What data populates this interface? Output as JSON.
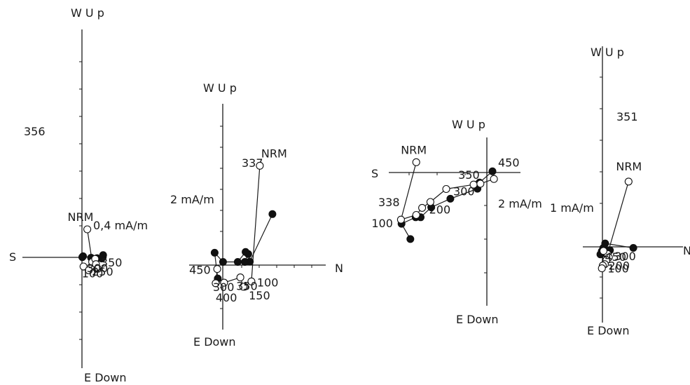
{
  "colors": {
    "ink": "#1a1a1a",
    "filled_point": "#111111",
    "open_point": "#ffffff"
  },
  "chart_data": [
    {
      "type": "scatter",
      "panel_label": "356",
      "axis_labels": {
        "north": "",
        "south": "S",
        "up": "W U p",
        "down": "E Down"
      },
      "scale_label": "0,4 mA/m",
      "scale_value": 0.4,
      "unit": "mA/m",
      "series": [
        {
          "name": "",
          "marker": "filled",
          "points": [
            [
              2.0,
              -0.1
            ],
            [
              2.8,
              0.3
            ],
            [
              2.75,
              0.02
            ],
            [
              2.6,
              -0.15
            ],
            [
              1.7,
              -0.3
            ],
            [
              1.2,
              -0.05
            ],
            [
              0.15,
              0.15
            ],
            [
              0.05,
              0.03
            ]
          ]
        },
        {
          "name": "",
          "marker": "open",
          "points": [
            [
              0.7,
              3.7
            ],
            [
              1.35,
              -0.6
            ],
            [
              1.75,
              -0.2
            ],
            [
              1.85,
              -0.9
            ],
            [
              0.2,
              -1.2
            ],
            [
              0.9,
              -1.7
            ],
            [
              2.05,
              -1.5
            ],
            [
              2.1,
              -1.5
            ]
          ]
        }
      ],
      "point_labels": [
        {
          "text": "NRM",
          "series": 1,
          "index": 0
        },
        {
          "text": "350",
          "series": 1,
          "index": 2
        },
        {
          "text": "300",
          "series": 1,
          "index": 7
        },
        {
          "text": "250",
          "series": 1,
          "index": 6
        },
        {
          "text": "100",
          "series": 1,
          "index": 5
        }
      ]
    },
    {
      "type": "scatter",
      "panel_label": "337",
      "axis_labels": {
        "north": "N",
        "south": "",
        "up": "W U p",
        "down": "E Down"
      },
      "scale_label": "2 mA/m",
      "scale_value": 2,
      "unit": "mA/m",
      "series": [
        {
          "name": "",
          "marker": "filled",
          "points": [
            [
              9.45,
              9.7
            ],
            [
              5.15,
              0.65
            ],
            [
              4.2,
              0.6
            ],
            [
              4.85,
              2.1
            ],
            [
              4.35,
              2.5
            ],
            [
              2.85,
              0.6
            ],
            [
              0.05,
              0.6
            ],
            [
              -1.55,
              2.35
            ],
            [
              -0.95,
              -2.55
            ]
          ]
        },
        {
          "name": "",
          "marker": "open",
          "points": [
            [
              7.05,
              18.9
            ],
            [
              5.45,
              -3.1
            ],
            [
              4.15,
              -4.1
            ],
            [
              3.9,
              -4.1
            ],
            [
              3.35,
              -2.35
            ],
            [
              0.25,
              -3.35
            ],
            [
              -1.35,
              -3.45
            ],
            [
              -1.05,
              -0.75
            ]
          ]
        }
      ],
      "point_labels": [
        {
          "text": "NRM",
          "series": 1,
          "index": 0
        },
        {
          "text": "100",
          "series": 1,
          "index": 1
        },
        {
          "text": "150",
          "series": 1,
          "index": 2
        },
        {
          "text": "350",
          "series": 1,
          "index": 4
        },
        {
          "text": "300",
          "series": 1,
          "index": 5
        },
        {
          "text": "400",
          "series": 1,
          "index": 6
        },
        {
          "text": "450",
          "series": 1,
          "index": 7
        }
      ]
    },
    {
      "type": "scatter",
      "panel_label": "338",
      "axis_labels": {
        "north": "",
        "south": "S",
        "up": "W U p",
        "down": "E Down"
      },
      "scale_label": "2 mA/m",
      "scale_value": 2,
      "unit": "mA/m",
      "series": [
        {
          "name": "",
          "marker": "filled",
          "points": [
            [
              -13.0,
              -11.3
            ],
            [
              -14.5,
              -8.7
            ],
            [
              -12.1,
              -7.6
            ],
            [
              -11.25,
              -7.6
            ],
            [
              -9.45,
              -5.9
            ],
            [
              -6.2,
              -4.45
            ],
            [
              -1.6,
              -2.75
            ],
            [
              -1.25,
              -1.7
            ],
            [
              0.95,
              0.2
            ]
          ]
        },
        {
          "name": "",
          "marker": "open",
          "points": [
            [
              -12.0,
              1.75
            ],
            [
              -14.6,
              -8.0
            ],
            [
              -12.0,
              -7.2
            ],
            [
              -11.0,
              -6.0
            ],
            [
              -9.6,
              -5.0
            ],
            [
              -6.9,
              -2.8
            ],
            [
              -2.25,
              -2.05
            ],
            [
              -1.1,
              -1.9
            ],
            [
              1.2,
              -1.1
            ]
          ]
        }
      ],
      "point_labels": [
        {
          "text": "NRM",
          "series": 1,
          "index": 0
        },
        {
          "text": "100",
          "series": 1,
          "index": 1
        },
        {
          "text": "200",
          "series": 1,
          "index": 3
        },
        {
          "text": "300",
          "series": 1,
          "index": 5
        },
        {
          "text": "350",
          "series": 1,
          "index": 6
        },
        {
          "text": "450",
          "series": 0,
          "index": 8
        }
      ]
    },
    {
      "type": "scatter",
      "panel_label": "351",
      "axis_labels": {
        "north": "N",
        "south": "",
        "up": "W U p",
        "down": "E Down"
      },
      "scale_label": "1 mA/m",
      "scale_value": 1,
      "unit": "mA/m",
      "series": [
        {
          "name": "",
          "marker": "filled",
          "points": [
            [
              4.55,
              -0.15
            ],
            [
              0.4,
              0.5
            ],
            [
              0.4,
              -0.55
            ],
            [
              0.12,
              -0.15
            ],
            [
              0.45,
              -0.95
            ],
            [
              0.7,
              -0.8
            ],
            [
              1.1,
              -0.5
            ],
            [
              0.55,
              -0.6
            ],
            [
              -0.1,
              -0.65
            ],
            [
              -0.3,
              -1.1
            ]
          ]
        },
        {
          "name": "",
          "marker": "open",
          "points": [
            [
              3.85,
              9.6
            ],
            [
              0.75,
              -1.05
            ],
            [
              0.95,
              -1.55
            ],
            [
              0.6,
              -1.95
            ],
            [
              0.35,
              -2.55
            ],
            [
              0.05,
              -2.75
            ],
            [
              -0.08,
              -3.15
            ],
            [
              0.15,
              -0.6
            ]
          ]
        }
      ],
      "point_labels": [
        {
          "text": "NRM",
          "series": 1,
          "index": 0
        },
        {
          "text": "300",
          "series": 1,
          "index": 2
        },
        {
          "text": "200",
          "series": 1,
          "index": 5
        },
        {
          "text": "100",
          "series": 1,
          "index": 6
        },
        {
          "text": "450",
          "series": 1,
          "index": 7
        }
      ]
    }
  ]
}
